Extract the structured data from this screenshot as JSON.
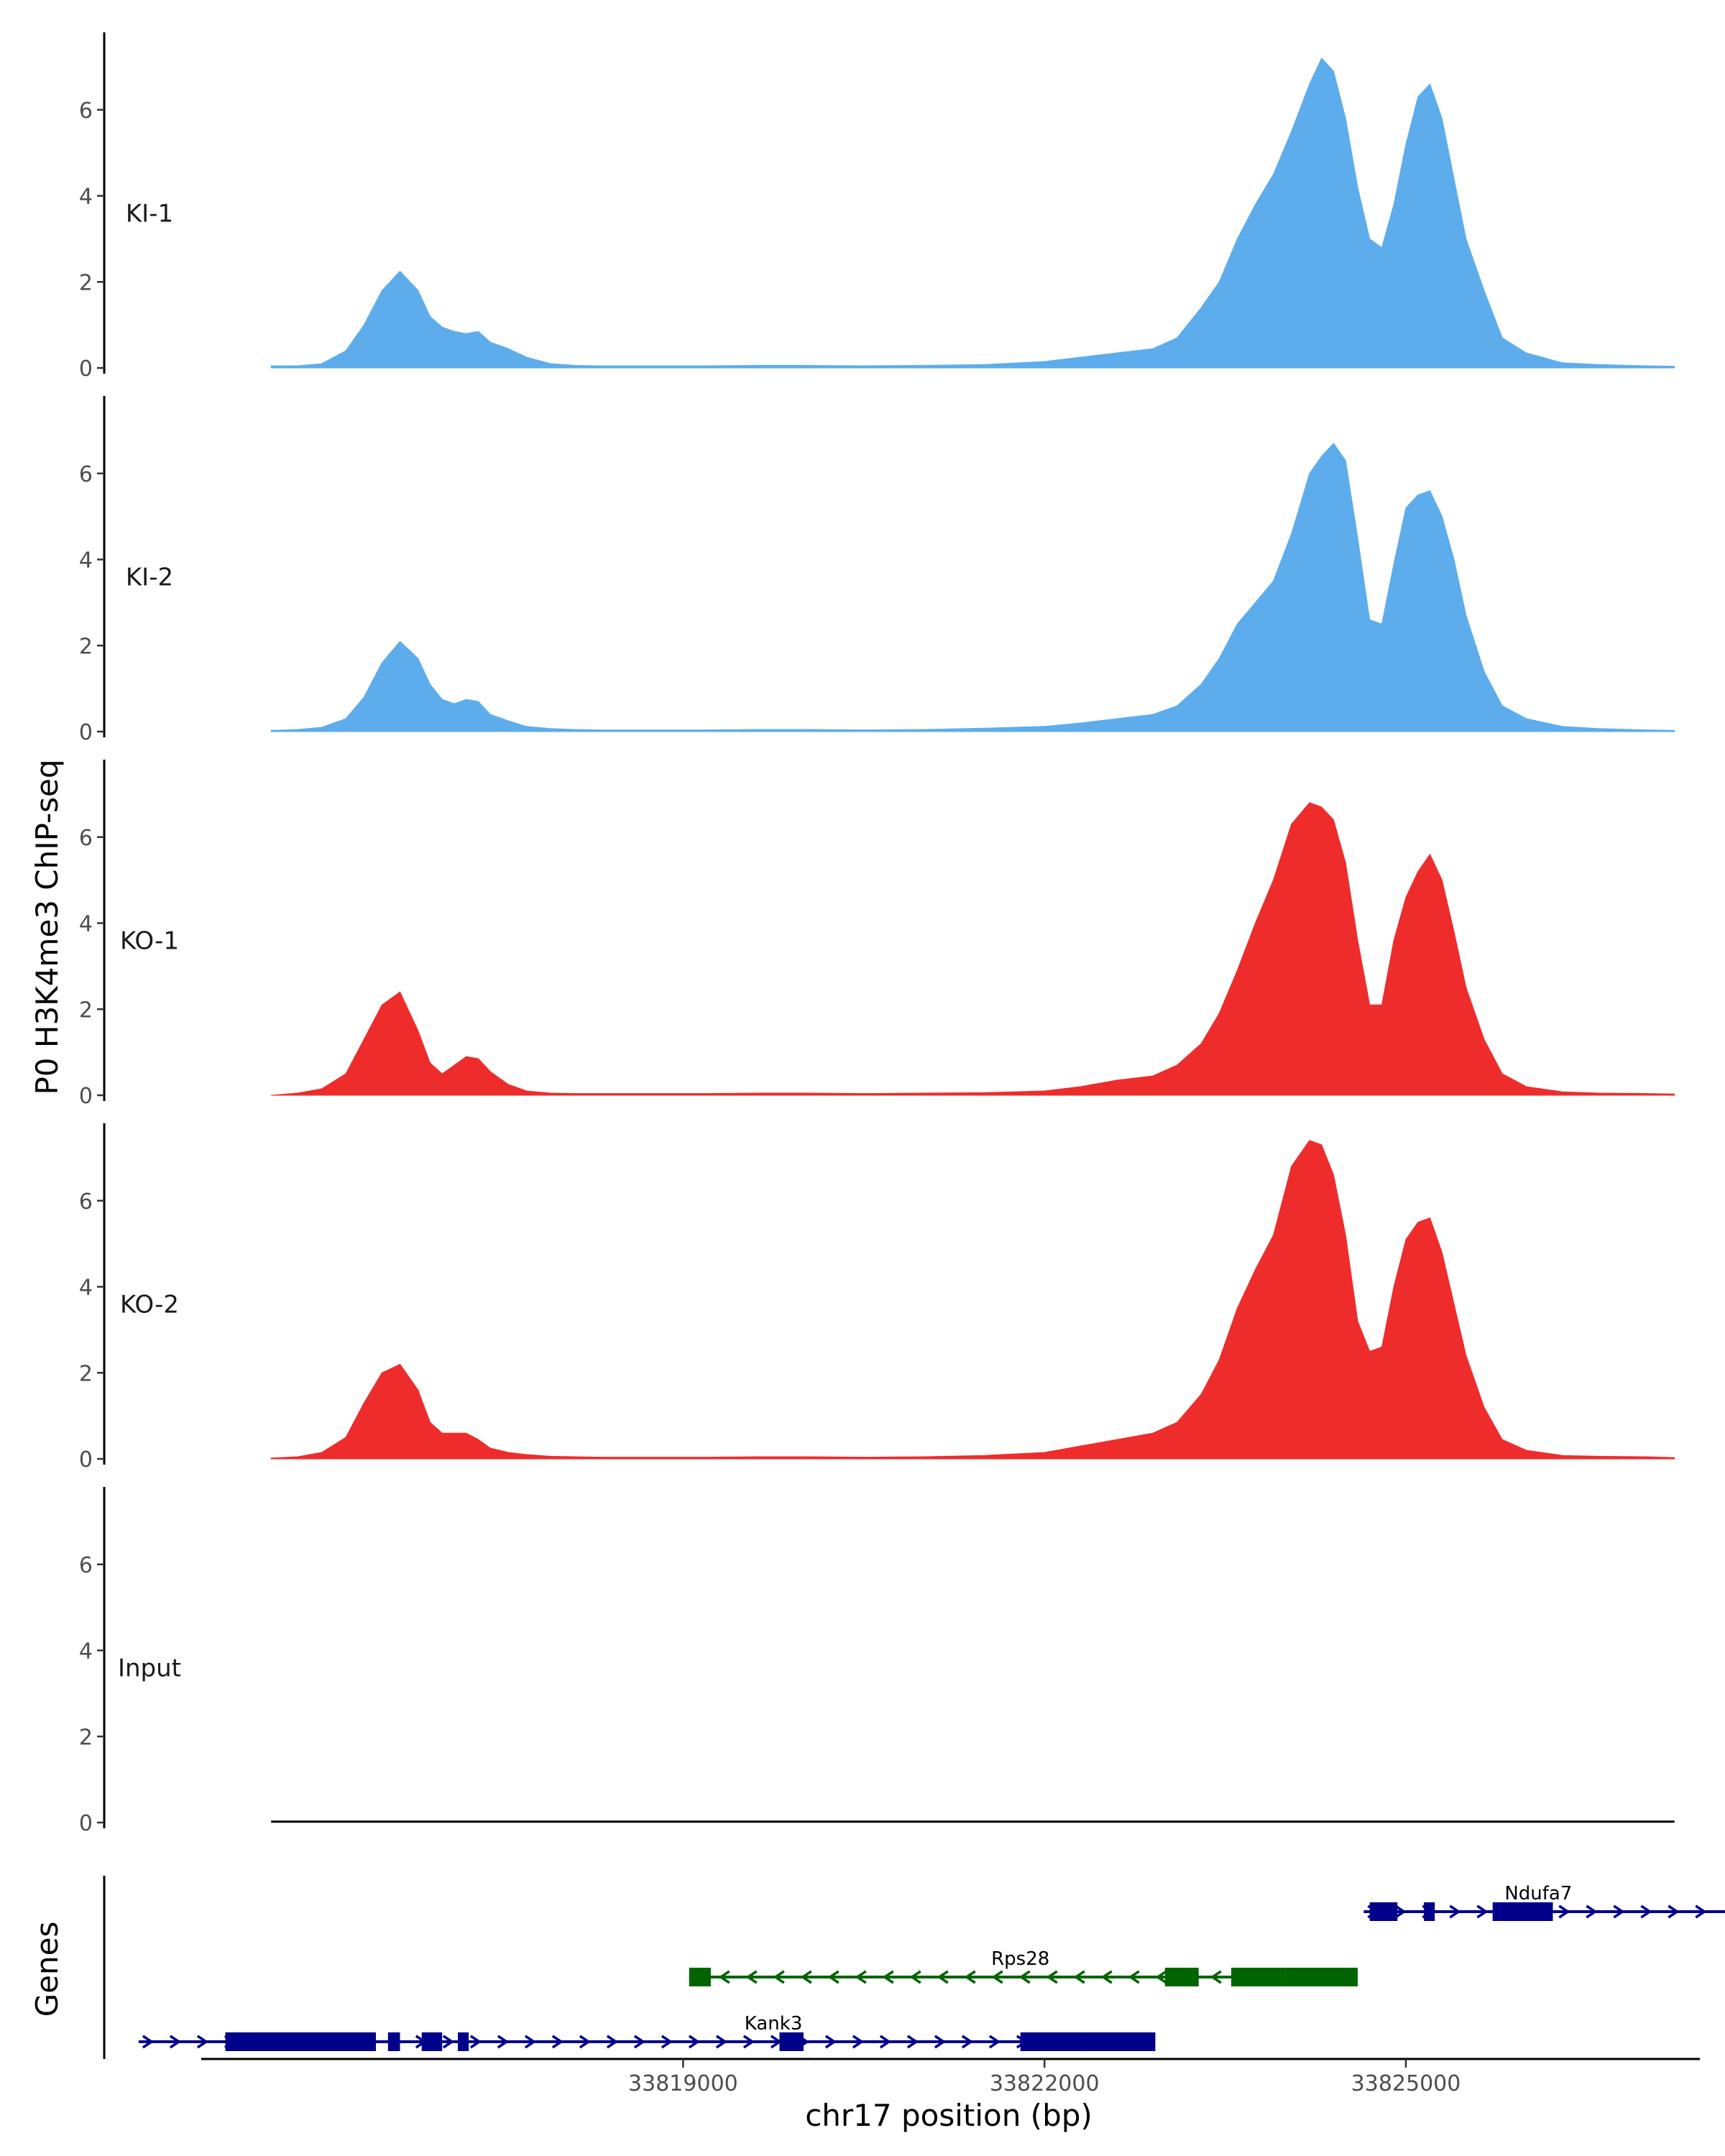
{
  "chart_data": {
    "type": "area",
    "y_axis_title": "P0 H3K4me3 ChIP-seq",
    "x_axis_title": "chr17 position (bp)",
    "genes_axis_title": "Genes",
    "x_range": [
      33815000,
      33827500
    ],
    "y_range": [
      0,
      7.8
    ],
    "y_ticks": [
      0,
      2,
      4,
      6
    ],
    "x_ticks": [
      {
        "value": 33819000,
        "label": "33819000"
      },
      {
        "value": 33822000,
        "label": "33822000"
      },
      {
        "value": 33825000,
        "label": "33825000"
      }
    ],
    "colors": {
      "KI": "#5DADEC",
      "KO": "#EE2C2C",
      "Input": "#000000",
      "Ndufa7": "#00008B",
      "Rps28": "#006400",
      "Kank3": "#00008B"
    },
    "x": [
      33815580,
      33815800,
      33816000,
      33816200,
      33816350,
      33816500,
      33816650,
      33816800,
      33816900,
      33817000,
      33817100,
      33817200,
      33817300,
      33817400,
      33817550,
      33817700,
      33817900,
      33818100,
      33818300,
      33818500,
      33818800,
      33819200,
      33819600,
      33820000,
      33820500,
      33821000,
      33821500,
      33822000,
      33822300,
      33822600,
      33822900,
      33823100,
      33823300,
      33823450,
      33823600,
      33823750,
      33823900,
      33824050,
      33824200,
      33824300,
      33824400,
      33824500,
      33824600,
      33824700,
      33824800,
      33824900,
      33825000,
      33825100,
      33825200,
      33825300,
      33825400,
      33825500,
      33825650,
      33825800,
      33826000,
      33826300,
      33826600,
      33827000,
      33827230
    ],
    "tracks": [
      {
        "name": "KI-1",
        "color": "#5DADEC",
        "values": [
          0.05,
          0.05,
          0.1,
          0.4,
          1.0,
          1.8,
          2.25,
          1.8,
          1.2,
          0.95,
          0.85,
          0.8,
          0.85,
          0.6,
          0.45,
          0.25,
          0.1,
          0.06,
          0.05,
          0.05,
          0.05,
          0.05,
          0.06,
          0.06,
          0.05,
          0.06,
          0.08,
          0.15,
          0.25,
          0.35,
          0.45,
          0.7,
          1.4,
          2.0,
          3.0,
          3.8,
          4.5,
          5.5,
          6.6,
          7.2,
          6.9,
          5.8,
          4.2,
          3.0,
          2.8,
          3.8,
          5.2,
          6.3,
          6.6,
          5.8,
          4.4,
          3.0,
          1.8,
          0.7,
          0.35,
          0.12,
          0.08,
          0.05,
          0.04
        ]
      },
      {
        "name": "KI-2",
        "color": "#5DADEC",
        "values": [
          0.03,
          0.05,
          0.1,
          0.3,
          0.8,
          1.6,
          2.1,
          1.7,
          1.1,
          0.75,
          0.65,
          0.75,
          0.7,
          0.4,
          0.25,
          0.12,
          0.07,
          0.05,
          0.04,
          0.04,
          0.04,
          0.04,
          0.05,
          0.05,
          0.04,
          0.05,
          0.08,
          0.12,
          0.2,
          0.3,
          0.4,
          0.6,
          1.1,
          1.7,
          2.5,
          3.0,
          3.5,
          4.6,
          6.0,
          6.4,
          6.7,
          6.3,
          4.5,
          2.6,
          2.5,
          3.9,
          5.2,
          5.5,
          5.6,
          5.0,
          4.0,
          2.7,
          1.4,
          0.6,
          0.3,
          0.12,
          0.07,
          0.04,
          0.03
        ]
      },
      {
        "name": "KO-1",
        "color": "#EE2C2C",
        "values": [
          0.0,
          0.05,
          0.15,
          0.5,
          1.3,
          2.1,
          2.4,
          1.5,
          0.75,
          0.5,
          0.7,
          0.9,
          0.85,
          0.55,
          0.25,
          0.1,
          0.05,
          0.04,
          0.04,
          0.04,
          0.04,
          0.04,
          0.05,
          0.05,
          0.04,
          0.05,
          0.06,
          0.1,
          0.2,
          0.35,
          0.45,
          0.7,
          1.2,
          1.9,
          2.9,
          4.0,
          5.0,
          6.3,
          6.8,
          6.7,
          6.4,
          5.4,
          3.6,
          2.1,
          2.1,
          3.6,
          4.6,
          5.2,
          5.6,
          5.0,
          3.8,
          2.5,
          1.3,
          0.5,
          0.2,
          0.08,
          0.05,
          0.04,
          0.03
        ]
      },
      {
        "name": "KO-2",
        "color": "#EE2C2C",
        "values": [
          0.02,
          0.05,
          0.15,
          0.5,
          1.3,
          2.0,
          2.2,
          1.6,
          0.85,
          0.6,
          0.6,
          0.6,
          0.45,
          0.25,
          0.15,
          0.1,
          0.06,
          0.05,
          0.04,
          0.04,
          0.04,
          0.04,
          0.05,
          0.05,
          0.04,
          0.05,
          0.08,
          0.15,
          0.3,
          0.45,
          0.6,
          0.85,
          1.5,
          2.3,
          3.5,
          4.4,
          5.2,
          6.8,
          7.4,
          7.3,
          6.6,
          5.2,
          3.2,
          2.5,
          2.6,
          4.0,
          5.1,
          5.5,
          5.6,
          4.8,
          3.6,
          2.4,
          1.2,
          0.45,
          0.2,
          0.08,
          0.06,
          0.05,
          0.03
        ]
      },
      {
        "name": "Input",
        "color": "#000000",
        "values": [
          0.02,
          0.02,
          0.02,
          0.02,
          0.02,
          0.02,
          0.02,
          0.02,
          0.02,
          0.02,
          0.02,
          0.02,
          0.02,
          0.02,
          0.02,
          0.02,
          0.02,
          0.02,
          0.02,
          0.02,
          0.02,
          0.02,
          0.02,
          0.02,
          0.02,
          0.02,
          0.02,
          0.02,
          0.02,
          0.02,
          0.02,
          0.02,
          0.02,
          0.02,
          0.02,
          0.02,
          0.02,
          0.02,
          0.02,
          0.02,
          0.02,
          0.02,
          0.02,
          0.02,
          0.02,
          0.02,
          0.02,
          0.02,
          0.02,
          0.02,
          0.02,
          0.02,
          0.02,
          0.02,
          0.02,
          0.02,
          0.02,
          0.02,
          0.02
        ]
      }
    ],
    "genes": [
      {
        "name": "Ndufa7",
        "strand": "+",
        "start": 33824650,
        "end": 33827650,
        "label_pos": 33826100,
        "color": "#00008B",
        "exons": [
          [
            33824700,
            33824930
          ],
          [
            33825150,
            33825240
          ],
          [
            33825720,
            33826220
          ]
        ]
      },
      {
        "name": "Rps28",
        "strand": "-",
        "start": 33819050,
        "end": 33824600,
        "label_pos": 33821800,
        "color": "#006400",
        "exons": [
          [
            33819050,
            33819230
          ],
          [
            33823000,
            33823280
          ],
          [
            33823550,
            33824000
          ],
          [
            33824000,
            33824600
          ]
        ]
      },
      {
        "name": "Kank3",
        "strand": "+",
        "start": 33814480,
        "end": 33822900,
        "label_pos": 33819750,
        "color": "#00008B",
        "exons": [
          [
            33815200,
            33816450
          ],
          [
            33816550,
            33816650
          ],
          [
            33816830,
            33817000
          ],
          [
            33817130,
            33817220
          ],
          [
            33819800,
            33820000
          ],
          [
            33821800,
            33822300
          ],
          [
            33822300,
            33822920
          ]
        ]
      }
    ]
  }
}
